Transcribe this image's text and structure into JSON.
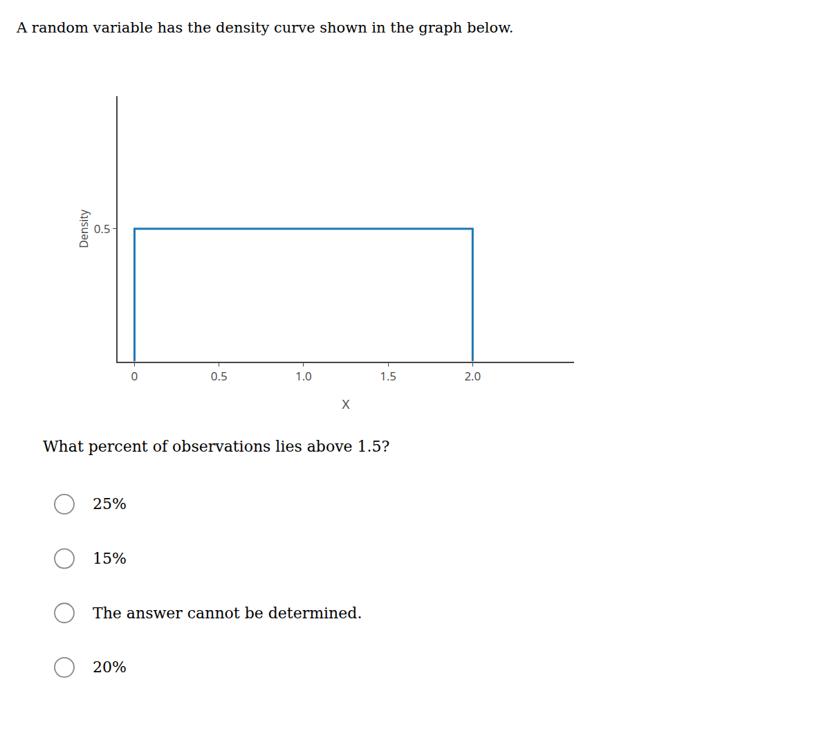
{
  "chart_data": {
    "type": "line",
    "title": "A random variable has the density curve shown in the graph below.",
    "x": [
      0,
      0,
      2.0,
      2.0
    ],
    "values": [
      0,
      0.5,
      0.5,
      0
    ],
    "xlabel": "X",
    "ylabel": "Density",
    "xlim": [
      -0.1,
      2.6
    ],
    "xticks": [
      0,
      0.5,
      {
        "value": 1.0,
        "label": "1.0"
      },
      1.5,
      {
        "value": 2.0,
        "label": "2.0"
      }
    ],
    "ylim": [
      0,
      1.0
    ],
    "yticks": [
      0.5
    ],
    "grid": false,
    "annotations": [
      "What percent of observations lies above 1.5?",
      "25%",
      "15%",
      "The answer cannot be determined.",
      "20%"
    ]
  }
}
